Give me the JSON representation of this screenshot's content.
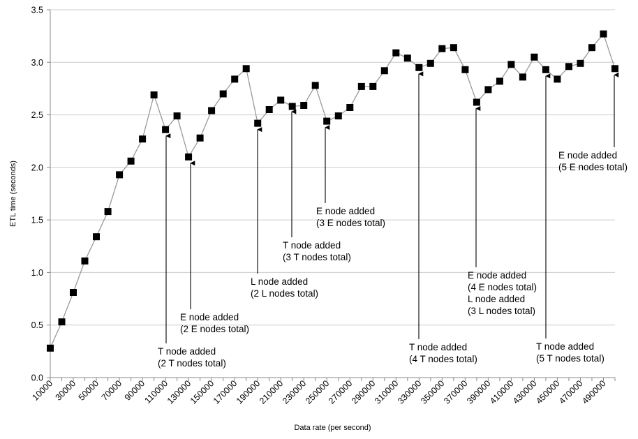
{
  "chart_data": {
    "type": "line",
    "xlabel": "Data rate (per second)",
    "ylabel": "ETL time (seconds)",
    "ylim": [
      0,
      3.5
    ],
    "yticks": [
      "0.0",
      "0.5",
      "1.0",
      "1.5",
      "2.0",
      "2.5",
      "3.0",
      "3.5"
    ],
    "xticks": [
      "10000",
      "30000",
      "50000",
      "70000",
      "90000",
      "110000",
      "130000",
      "150000",
      "170000",
      "190000",
      "210000",
      "230000",
      "250000",
      "270000",
      "290000",
      "310000",
      "330000",
      "350000",
      "370000",
      "390000",
      "410000",
      "430000",
      "450000",
      "470000",
      "490000"
    ],
    "grid": true,
    "legend": "none",
    "colors": {
      "line": "#999999",
      "marker": "#000000",
      "grid": "#cccccc"
    },
    "x": [
      10000,
      20000,
      30000,
      40000,
      50000,
      60000,
      70000,
      80000,
      90000,
      100000,
      110000,
      120000,
      130000,
      140000,
      150000,
      160000,
      170000,
      180000,
      190000,
      200000,
      210000,
      220000,
      230000,
      240000,
      250000,
      260000,
      270000,
      280000,
      290000,
      300000,
      310000,
      320000,
      330000,
      340000,
      350000,
      360000,
      370000,
      380000,
      390000,
      400000,
      410000,
      420000,
      430000,
      440000,
      450000,
      460000,
      470000,
      480000,
      490000,
      500000
    ],
    "series": [
      {
        "values": [
          0.28,
          0.53,
          0.81,
          1.11,
          1.34,
          1.58,
          1.93,
          2.06,
          2.27,
          2.69,
          2.36,
          2.49,
          2.1,
          2.28,
          2.54,
          2.7,
          2.84,
          2.94,
          2.42,
          2.55,
          2.64,
          2.58,
          2.59,
          2.78,
          2.44,
          2.49,
          2.57,
          2.77,
          2.77,
          2.92,
          3.09,
          3.04,
          2.95,
          2.99,
          3.13,
          3.14,
          2.93,
          2.62,
          2.74,
          2.82,
          2.98,
          2.86,
          3.05,
          2.93,
          2.84,
          2.96,
          2.99,
          3.14,
          3.27,
          2.94
        ]
      }
    ],
    "annotations": [
      {
        "lines": [
          "T node added",
          "(2 T nodes total)"
        ],
        "x": 110000
      },
      {
        "lines": [
          "E node added",
          "(2 E nodes total)"
        ],
        "x": 130000
      },
      {
        "lines": [
          "L node added",
          "(2 L nodes total)"
        ],
        "x": 190000
      },
      {
        "lines": [
          "T node added",
          "(3 T nodes total)"
        ],
        "x": 230000
      },
      {
        "lines": [
          "E node added",
          "(3 E nodes total)"
        ],
        "x": 250000
      },
      {
        "lines": [
          "T node added",
          "(4 T nodes total)"
        ],
        "x": 330000
      },
      {
        "lines": [
          "E node added",
          "(4 E nodes total)",
          "L node added",
          "(3 L nodes total)"
        ],
        "x": 380000
      },
      {
        "lines": [
          "T node added",
          "(5 T nodes total)"
        ],
        "x": 440000
      },
      {
        "lines": [
          "E node added",
          "(5 E nodes total)"
        ],
        "x": 500000
      }
    ]
  }
}
